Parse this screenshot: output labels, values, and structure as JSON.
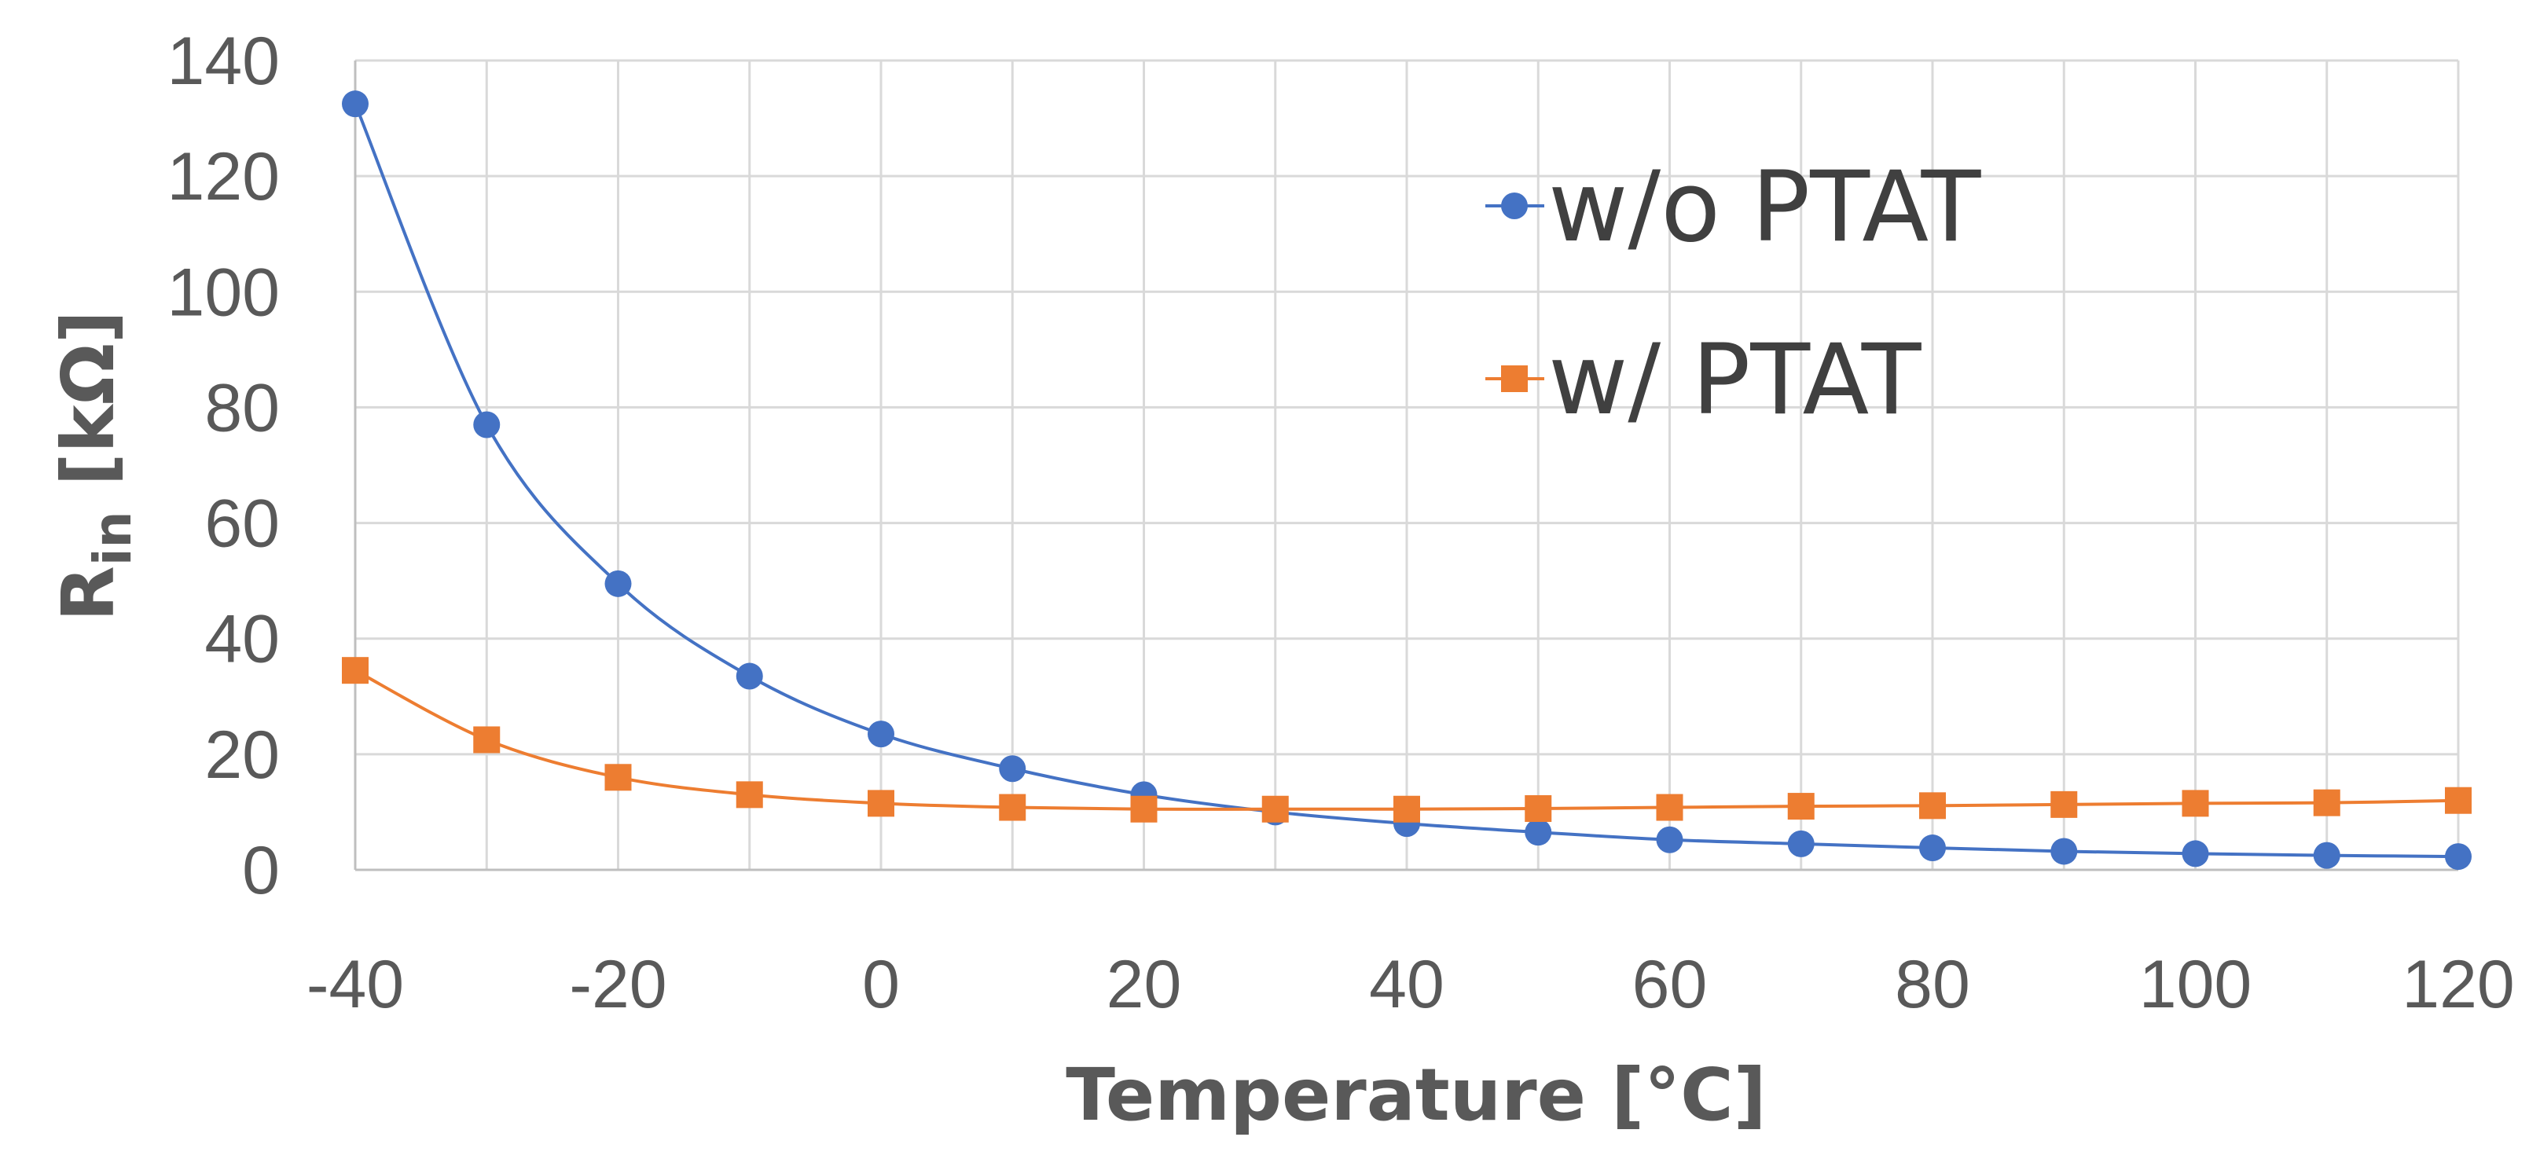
{
  "chart_data": {
    "type": "line",
    "title": "",
    "xlabel": "Temperature [°C]",
    "ylabel_main": "R",
    "ylabel_subscript": "in",
    "ylabel_unit": " [kΩ]",
    "x": [
      -40,
      -30,
      -20,
      -10,
      0,
      10,
      20,
      30,
      40,
      50,
      60,
      70,
      80,
      90,
      100,
      110,
      120
    ],
    "xlim": [
      -40,
      120
    ],
    "ylim": [
      0,
      140
    ],
    "xticks": [
      -40,
      -20,
      0,
      20,
      40,
      60,
      80,
      100,
      120
    ],
    "yticks": [
      0,
      20,
      40,
      60,
      80,
      100,
      120,
      140
    ],
    "grid": true,
    "legend_position": "top-right",
    "series": [
      {
        "name": "w/o PTAT",
        "color": "#4472C4",
        "marker": "circle",
        "values": [
          132.5,
          77,
          49.5,
          33.5,
          23.5,
          17.5,
          13,
          10,
          8,
          6.5,
          5.2,
          4.5,
          3.8,
          3.2,
          2.8,
          2.5,
          2.3
        ]
      },
      {
        "name": "w/ PTAT",
        "color": "#ED7D31",
        "marker": "square",
        "values": [
          34.5,
          22.5,
          16,
          13,
          11.5,
          10.8,
          10.5,
          10.5,
          10.5,
          10.6,
          10.8,
          11,
          11.1,
          11.3,
          11.5,
          11.6,
          12
        ]
      }
    ]
  }
}
